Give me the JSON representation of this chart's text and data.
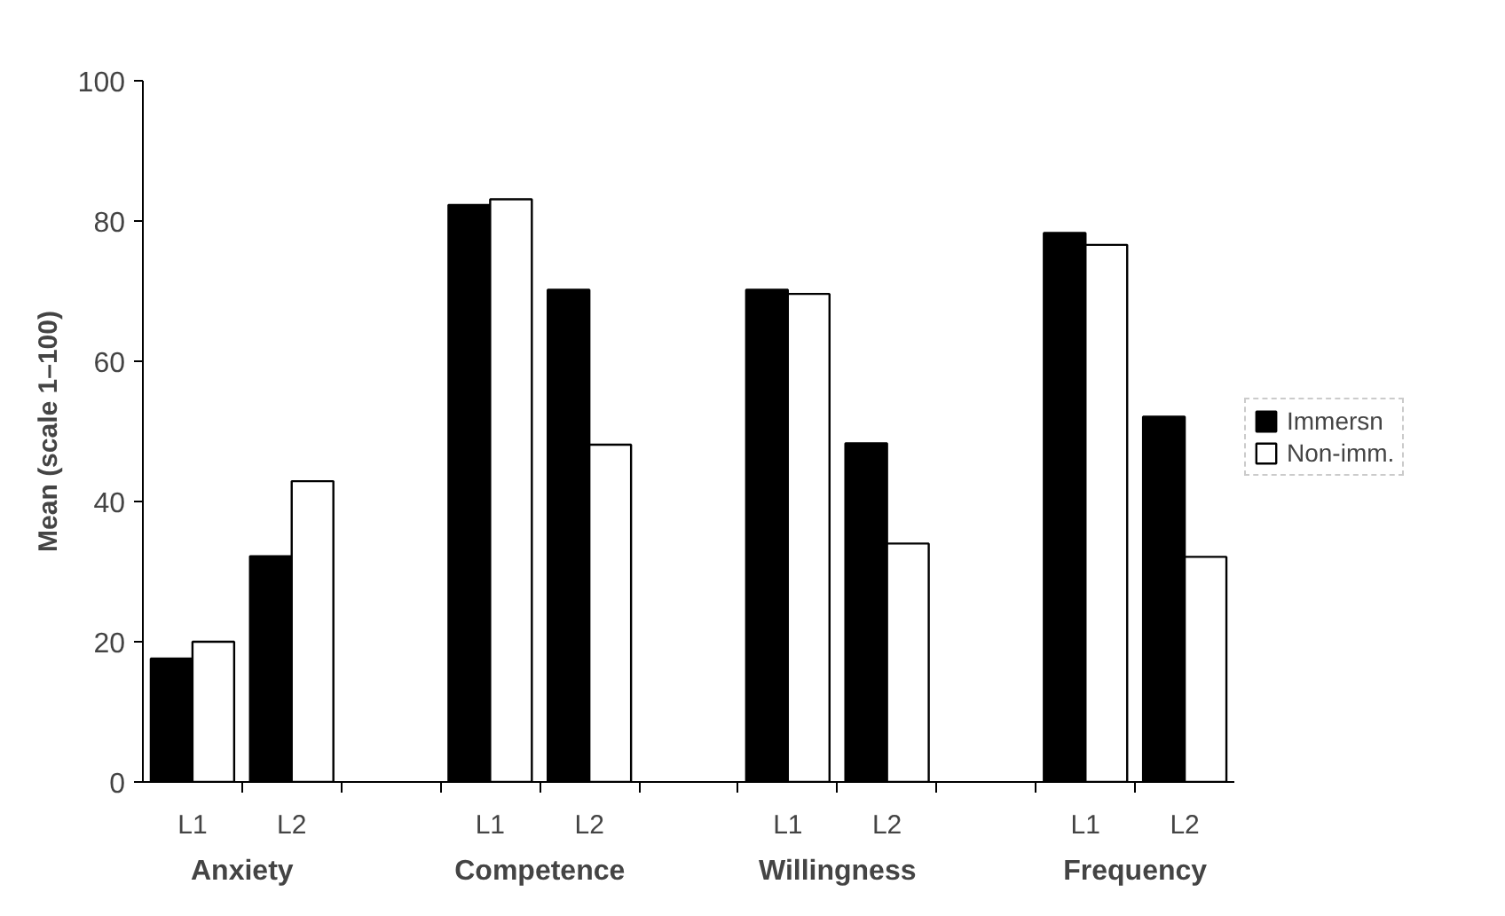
{
  "chart_data": {
    "type": "bar",
    "ylabel": "Mean (scale 1–100)",
    "categories": [
      "L1",
      "L2",
      null,
      "L1",
      "L2",
      null,
      "L1",
      "L2",
      null,
      "L1",
      "L2"
    ],
    "annotations": [
      "Anxiety",
      "Competence",
      "Willingness",
      "Frequency"
    ],
    "series": [
      {
        "name": "Immersn",
        "color": "#000000",
        "values": [
          17.6,
          32.2,
          null,
          82.3,
          70.2,
          null,
          70.2,
          48.3,
          null,
          78.3,
          52.1
        ]
      },
      {
        "name": "Non-imm.",
        "color": "#ffffff",
        "values": [
          20,
          42.9,
          null,
          83.1,
          48.1,
          null,
          69.6,
          34,
          null,
          76.6,
          32.1
        ]
      }
    ],
    "ylim": [
      0,
      100
    ],
    "yticks": [
      0,
      20,
      40,
      60,
      80,
      100
    ],
    "legend": "right"
  }
}
